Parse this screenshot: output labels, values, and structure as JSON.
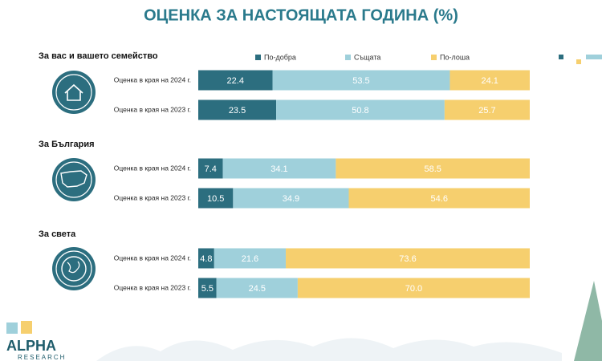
{
  "title": "ОЦЕНКА ЗА НАСТОЯЩАТА ГОДИНА (%)",
  "logo": {
    "name": "ALPHA",
    "sub": "RESEARCH"
  },
  "chart_data": [
    {
      "type": "bar",
      "orientation": "horizontal",
      "stacked": true,
      "title": "За вас и вашето семейство",
      "categories": [
        "Оценка в края на 2024 г.",
        "Оценка в края на 2023 г."
      ],
      "xlim": [
        0,
        100
      ],
      "series": [
        {
          "name": "По-добра",
          "color": "#2c6e7f",
          "values": [
            22.4,
            23.5
          ]
        },
        {
          "name": "Същата",
          "color": "#9fd0db",
          "values": [
            53.5,
            50.8
          ]
        },
        {
          "name": "По-лоша",
          "color": "#f6cf6e",
          "values": [
            24.1,
            25.7
          ]
        }
      ]
    },
    {
      "type": "bar",
      "orientation": "horizontal",
      "stacked": true,
      "title": "За България",
      "categories": [
        "Оценка в края на 2024 г.",
        "Оценка в края на 2023 г."
      ],
      "xlim": [
        0,
        100
      ],
      "series": [
        {
          "name": "По-добра",
          "color": "#2c6e7f",
          "values": [
            7.4,
            10.5
          ]
        },
        {
          "name": "Същата",
          "color": "#9fd0db",
          "values": [
            34.1,
            34.9
          ]
        },
        {
          "name": "По-лоша",
          "color": "#f6cf6e",
          "values": [
            58.5,
            54.6
          ]
        }
      ]
    },
    {
      "type": "bar",
      "orientation": "horizontal",
      "stacked": true,
      "title": "За света",
      "categories": [
        "Оценка в края на 2024 г.",
        "Оценка в края на 2023 г."
      ],
      "xlim": [
        0,
        100
      ],
      "series": [
        {
          "name": "По-добра",
          "color": "#2c6e7f",
          "values": [
            4.8,
            5.5
          ]
        },
        {
          "name": "Същата",
          "color": "#9fd0db",
          "values": [
            21.6,
            24.5
          ]
        },
        {
          "name": "По-лоша",
          "color": "#f6cf6e",
          "values": [
            73.6,
            70.0
          ],
          "value_labels": [
            "73.6",
            "70.0"
          ]
        }
      ]
    }
  ]
}
